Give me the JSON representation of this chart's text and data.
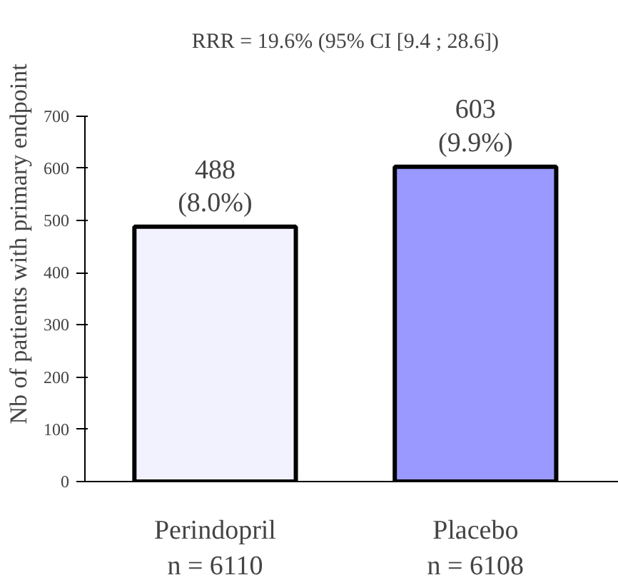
{
  "chart_data": {
    "type": "bar",
    "title": "RRR = 19.6% (95% CI [9.4 ; 28.6])",
    "ylabel": "Nb of patients with primary endpoint",
    "categories": [
      "Perindopril",
      "Placebo"
    ],
    "values": [
      488,
      603
    ],
    "colors": [
      "#f2f2ff",
      "#9999ff"
    ],
    "value_labels": [
      "488\n(8.0%)",
      "603\n(9.9%)"
    ],
    "annotations": [
      "n = 6110",
      "n = 6108"
    ],
    "ylim": [
      0,
      700
    ],
    "yticks": [
      0,
      100,
      200,
      300,
      400,
      500,
      600,
      700
    ],
    "grid": false
  }
}
